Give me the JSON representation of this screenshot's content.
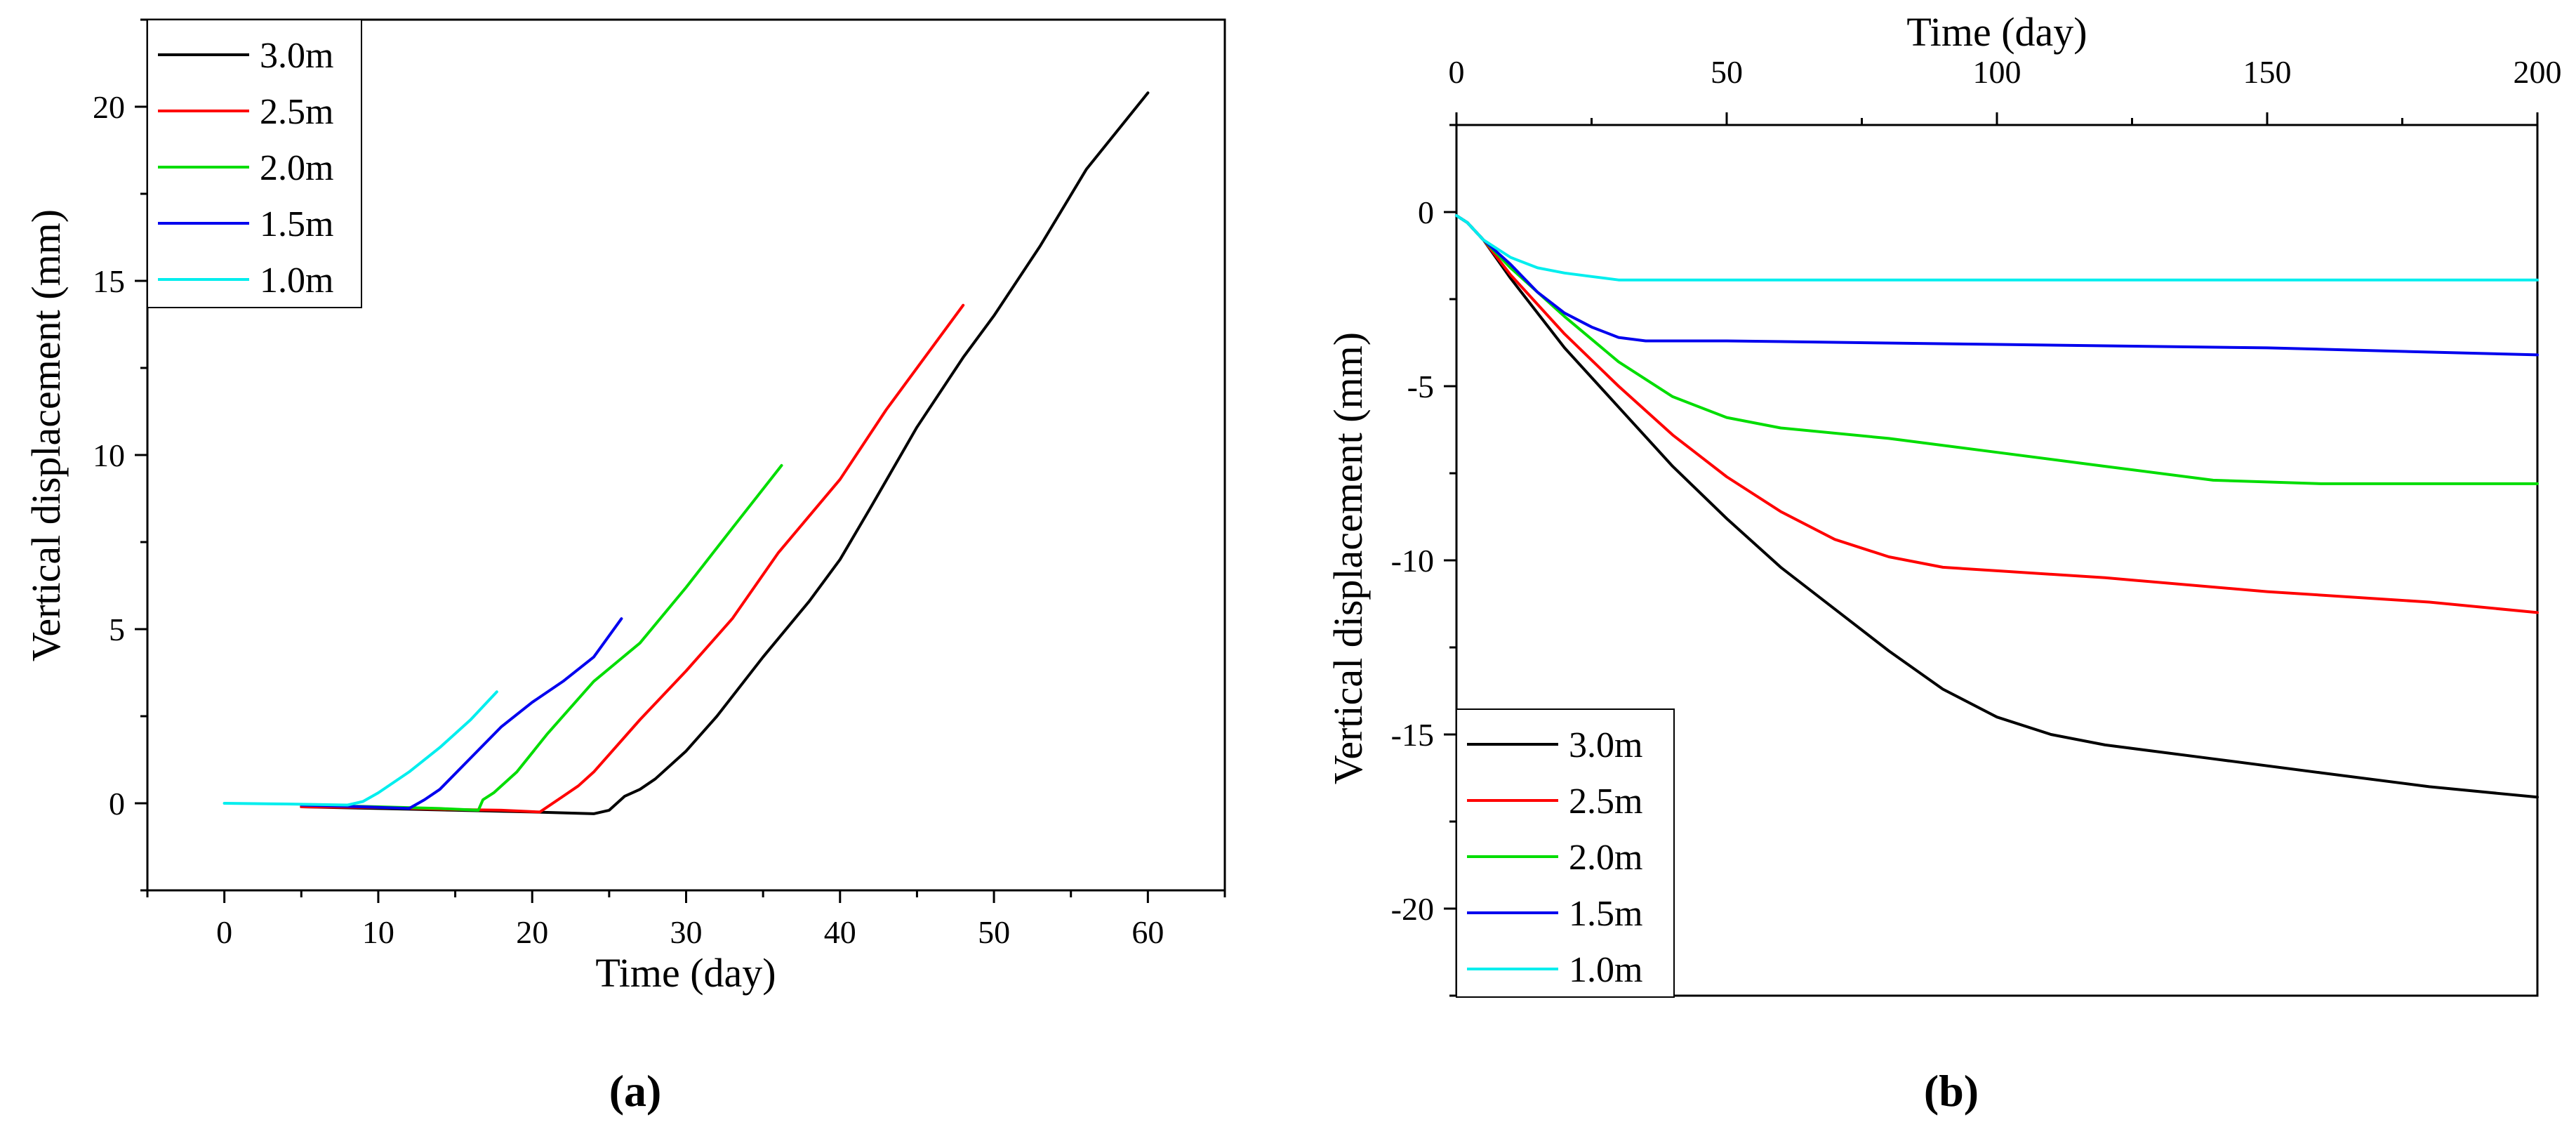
{
  "chart_data": [
    {
      "panel_label": "(a)",
      "type": "line",
      "title": "",
      "xlabel": "Time (day)",
      "ylabel": "Vertical displacement (mm)",
      "xlim": [
        -5,
        65
      ],
      "ylim": [
        -2.5,
        22.5
      ],
      "xticks": [
        0,
        10,
        20,
        30,
        40,
        50,
        60
      ],
      "yticks": [
        0,
        5,
        10,
        15,
        20
      ],
      "legend_position": "top-left",
      "series": [
        {
          "name": "3.0m",
          "color": "#000000",
          "points": [
            [
              5,
              -0.1
            ],
            [
              10,
              -0.15
            ],
            [
              15,
              -0.2
            ],
            [
              20,
              -0.25
            ],
            [
              24,
              -0.3
            ],
            [
              25,
              -0.2
            ],
            [
              26,
              0.2
            ],
            [
              27,
              0.4
            ],
            [
              28,
              0.7
            ],
            [
              30,
              1.5
            ],
            [
              32,
              2.5
            ],
            [
              35,
              4.2
            ],
            [
              38,
              5.8
            ],
            [
              40,
              7.0
            ],
            [
              42,
              8.5
            ],
            [
              45,
              10.8
            ],
            [
              48,
              12.8
            ],
            [
              50,
              14.0
            ],
            [
              53,
              16.0
            ],
            [
              56,
              18.2
            ],
            [
              60,
              20.4
            ]
          ]
        },
        {
          "name": "2.5m",
          "color": "#ff0000",
          "points": [
            [
              5,
              -0.1
            ],
            [
              10,
              -0.12
            ],
            [
              15,
              -0.18
            ],
            [
              18,
              -0.2
            ],
            [
              20.5,
              -0.25
            ],
            [
              21,
              -0.1
            ],
            [
              22,
              0.2
            ],
            [
              23,
              0.5
            ],
            [
              24,
              0.9
            ],
            [
              25,
              1.4
            ],
            [
              27,
              2.4
            ],
            [
              30,
              3.8
            ],
            [
              33,
              5.3
            ],
            [
              36,
              7.2
            ],
            [
              40,
              9.3
            ],
            [
              43,
              11.3
            ],
            [
              48,
              14.3
            ]
          ]
        },
        {
          "name": "2.0m",
          "color": "#00dd00",
          "points": [
            [
              5,
              -0.05
            ],
            [
              10,
              -0.1
            ],
            [
              14,
              -0.15
            ],
            [
              16.5,
              -0.2
            ],
            [
              16.8,
              0.1
            ],
            [
              17.5,
              0.3
            ],
            [
              19,
              0.9
            ],
            [
              21,
              2.0
            ],
            [
              24,
              3.5
            ],
            [
              27,
              4.6
            ],
            [
              30,
              6.2
            ],
            [
              33,
              7.9
            ],
            [
              36.2,
              9.7
            ]
          ]
        },
        {
          "name": "1.5m",
          "color": "#0000ee",
          "points": [
            [
              5,
              -0.05
            ],
            [
              9,
              -0.1
            ],
            [
              12,
              -0.15
            ],
            [
              13,
              0.1
            ],
            [
              14,
              0.4
            ],
            [
              16,
              1.3
            ],
            [
              18,
              2.2
            ],
            [
              20,
              2.9
            ],
            [
              22,
              3.5
            ],
            [
              24,
              4.2
            ],
            [
              25.8,
              5.3
            ]
          ]
        },
        {
          "name": "1.0m",
          "color": "#00eeee",
          "points": [
            [
              0,
              0
            ],
            [
              4,
              -0.02
            ],
            [
              8,
              -0.05
            ],
            [
              9,
              0.05
            ],
            [
              10,
              0.3
            ],
            [
              12,
              0.9
            ],
            [
              14,
              1.6
            ],
            [
              16,
              2.4
            ],
            [
              17.7,
              3.2
            ]
          ]
        }
      ]
    },
    {
      "panel_label": "(b)",
      "type": "line",
      "title": "",
      "xlabel": "Time (day)",
      "xlabel_position": "top",
      "ylabel": "Vertical displacement (mm)",
      "xlim": [
        0,
        200
      ],
      "ylim": [
        -22.5,
        2.5
      ],
      "xticks": [
        0,
        50,
        100,
        150,
        200
      ],
      "yticks": [
        0,
        -5,
        -10,
        -15,
        -20
      ],
      "legend_position": "bottom-left",
      "series": [
        {
          "name": "3.0m",
          "color": "#000000",
          "points": [
            [
              0,
              -0.1
            ],
            [
              2,
              -0.3
            ],
            [
              5,
              -0.8
            ],
            [
              10,
              -1.9
            ],
            [
              20,
              -3.9
            ],
            [
              30,
              -5.6
            ],
            [
              40,
              -7.3
            ],
            [
              50,
              -8.8
            ],
            [
              60,
              -10.2
            ],
            [
              70,
              -11.4
            ],
            [
              80,
              -12.6
            ],
            [
              90,
              -13.7
            ],
            [
              100,
              -14.5
            ],
            [
              110,
              -15.0
            ],
            [
              120,
              -15.3
            ],
            [
              140,
              -15.7
            ],
            [
              160,
              -16.1
            ],
            [
              180,
              -16.5
            ],
            [
              200,
              -16.8
            ]
          ]
        },
        {
          "name": "2.5m",
          "color": "#ff0000",
          "points": [
            [
              0,
              -0.1
            ],
            [
              2,
              -0.3
            ],
            [
              5,
              -0.8
            ],
            [
              10,
              -1.8
            ],
            [
              20,
              -3.5
            ],
            [
              30,
              -5.0
            ],
            [
              40,
              -6.4
            ],
            [
              50,
              -7.6
            ],
            [
              60,
              -8.6
            ],
            [
              70,
              -9.4
            ],
            [
              80,
              -9.9
            ],
            [
              90,
              -10.2
            ],
            [
              100,
              -10.3
            ],
            [
              120,
              -10.5
            ],
            [
              150,
              -10.9
            ],
            [
              180,
              -11.2
            ],
            [
              200,
              -11.5
            ]
          ]
        },
        {
          "name": "2.0m",
          "color": "#00dd00",
          "points": [
            [
              0,
              -0.1
            ],
            [
              2,
              -0.3
            ],
            [
              5,
              -0.8
            ],
            [
              10,
              -1.6
            ],
            [
              20,
              -3.0
            ],
            [
              30,
              -4.3
            ],
            [
              40,
              -5.3
            ],
            [
              50,
              -5.9
            ],
            [
              60,
              -6.2
            ],
            [
              80,
              -6.5
            ],
            [
              100,
              -6.9
            ],
            [
              120,
              -7.3
            ],
            [
              140,
              -7.7
            ],
            [
              160,
              -7.8
            ],
            [
              180,
              -7.8
            ],
            [
              200,
              -7.8
            ]
          ]
        },
        {
          "name": "1.5m",
          "color": "#0000ee",
          "points": [
            [
              0,
              -0.1
            ],
            [
              2,
              -0.3
            ],
            [
              5,
              -0.8
            ],
            [
              10,
              -1.5
            ],
            [
              15,
              -2.3
            ],
            [
              20,
              -2.9
            ],
            [
              25,
              -3.3
            ],
            [
              30,
              -3.6
            ],
            [
              35,
              -3.7
            ],
            [
              50,
              -3.7
            ],
            [
              100,
              -3.8
            ],
            [
              150,
              -3.9
            ],
            [
              200,
              -4.1
            ]
          ]
        },
        {
          "name": "1.0m",
          "color": "#00eeee",
          "points": [
            [
              0,
              -0.1
            ],
            [
              2,
              -0.3
            ],
            [
              5,
              -0.8
            ],
            [
              10,
              -1.3
            ],
            [
              15,
              -1.6
            ],
            [
              20,
              -1.75
            ],
            [
              25,
              -1.85
            ],
            [
              30,
              -1.95
            ],
            [
              50,
              -1.95
            ],
            [
              100,
              -1.95
            ],
            [
              150,
              -1.95
            ],
            [
              200,
              -1.95
            ]
          ]
        }
      ]
    }
  ]
}
